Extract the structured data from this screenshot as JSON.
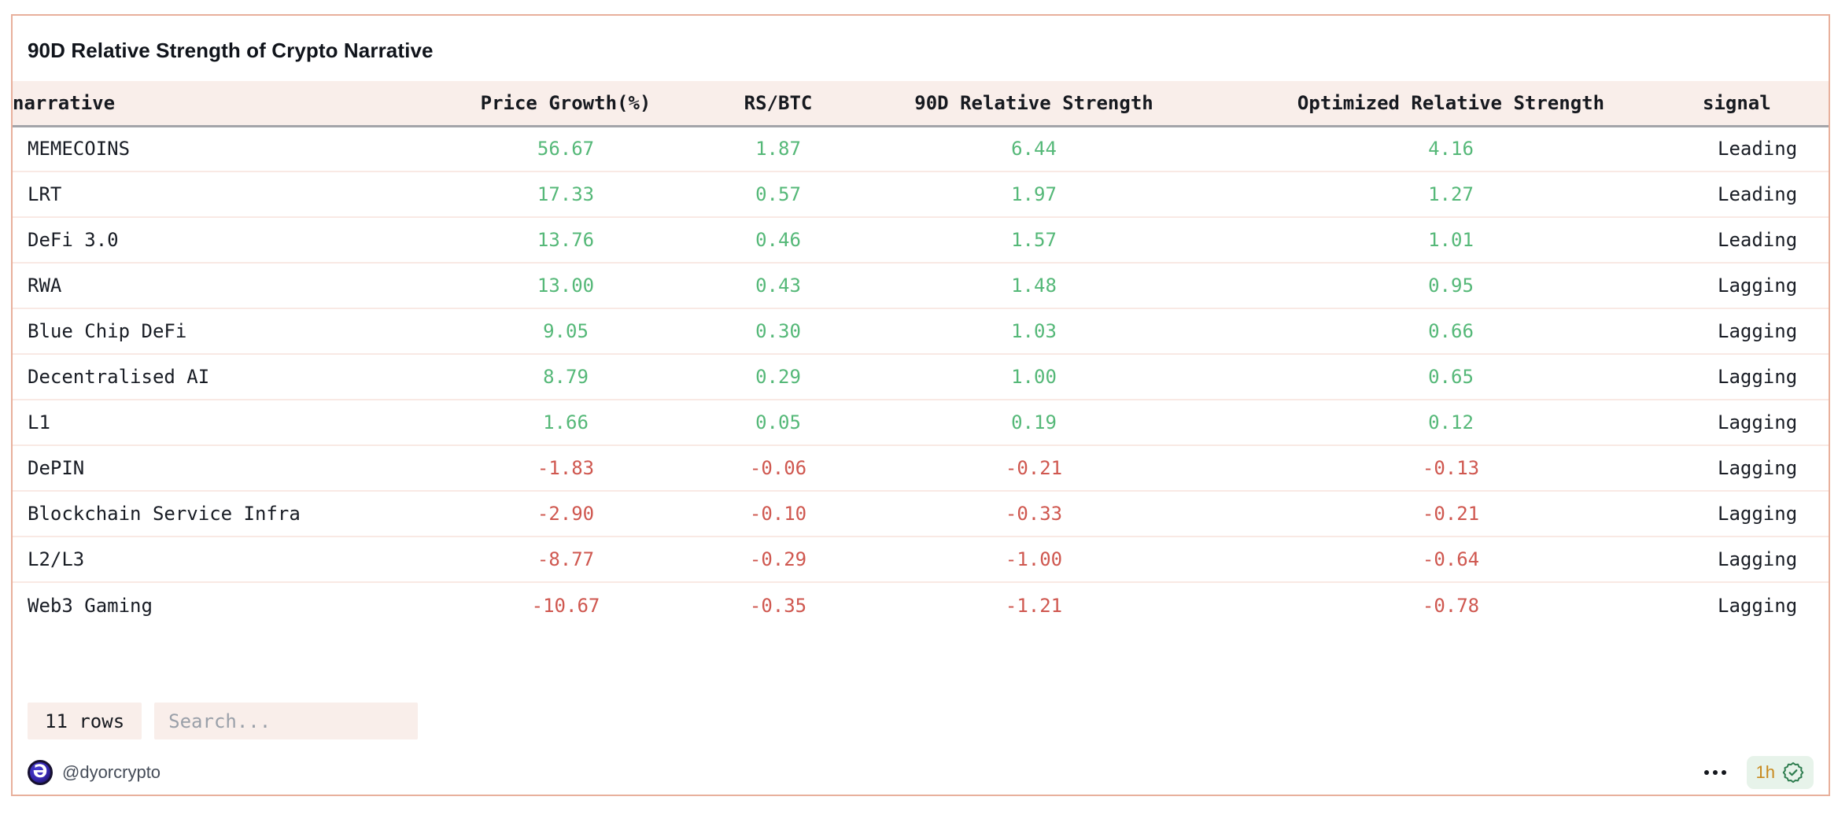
{
  "card": {
    "title": "90D Relative Strength of Crypto Narrative"
  },
  "table": {
    "columns": [
      {
        "label": "narrative",
        "align": "left"
      },
      {
        "label": "Price Growth(%)",
        "align": "center"
      },
      {
        "label": "RS/BTC",
        "align": "center"
      },
      {
        "label": "90D Relative Strength",
        "align": "center"
      },
      {
        "label": "Optimized Relative Strength",
        "align": "center"
      },
      {
        "label": "signal",
        "align": "left"
      }
    ],
    "rows": [
      [
        "MEMECOINS",
        "56.67",
        "1.87",
        "6.44",
        "4.16",
        "Leading"
      ],
      [
        "LRT",
        "17.33",
        "0.57",
        "1.97",
        "1.27",
        "Leading"
      ],
      [
        "DeFi 3.0",
        "13.76",
        "0.46",
        "1.57",
        "1.01",
        "Leading"
      ],
      [
        "RWA",
        "13.00",
        "0.43",
        "1.48",
        "0.95",
        "Lagging"
      ],
      [
        "Blue Chip DeFi",
        "9.05",
        "0.30",
        "1.03",
        "0.66",
        "Lagging"
      ],
      [
        "Decentralised AI",
        "8.79",
        "0.29",
        "1.00",
        "0.65",
        "Lagging"
      ],
      [
        "L1",
        "1.66",
        "0.05",
        "0.19",
        "0.12",
        "Lagging"
      ],
      [
        "DePIN",
        "-1.83",
        "-0.06",
        "-0.21",
        "-0.13",
        "Lagging"
      ],
      [
        "Blockchain Service Infra",
        "-2.90",
        "-0.10",
        "-0.33",
        "-0.21",
        "Lagging"
      ],
      [
        "L2/L3",
        "-8.77",
        "-0.29",
        "-1.00",
        "-0.64",
        "Lagging"
      ],
      [
        "Web3 Gaming",
        "-10.67",
        "-0.35",
        "-1.21",
        "-0.78",
        "Lagging"
      ]
    ]
  },
  "controls": {
    "rows_count_label": "11 rows",
    "search_placeholder": "Search..."
  },
  "footer": {
    "logo_glyph": "Ə",
    "handle": "@dyorcrypto",
    "age_label": "1h"
  },
  "colors": {
    "positive": "#55b878",
    "negative": "#cf574f",
    "border_accent": "#e8b09c",
    "panel_tint": "#f9eeea",
    "badge_green_bg": "#e7f3ea",
    "age_text": "#c8891d"
  }
}
